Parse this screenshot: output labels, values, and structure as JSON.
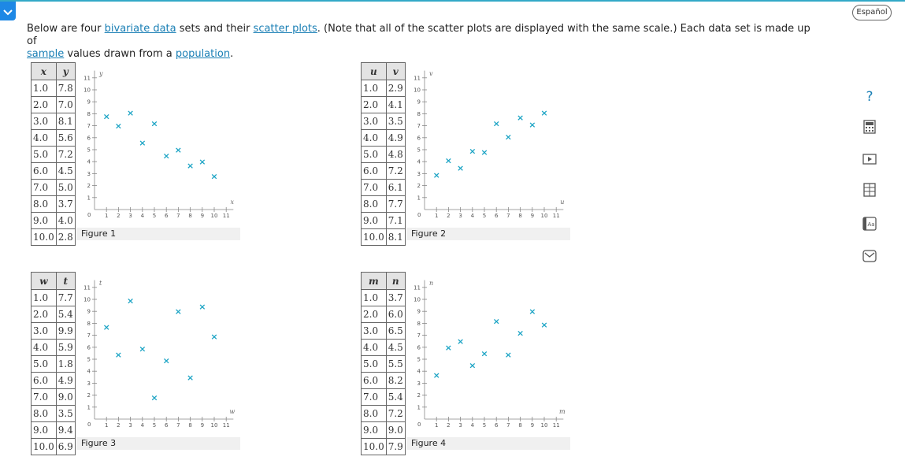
{
  "header": {
    "language_button": "Español"
  },
  "intro": {
    "t1": "Below are four ",
    "link_bivariate": "bivariate data",
    "t2": " sets and their ",
    "link_scatter": "scatter plots",
    "t3": ". (Note that all of the scatter plots are displayed with the same scale.) Each data set is made up of ",
    "link_sample": "sample",
    "t4": " values drawn from a ",
    "link_population": "population",
    "t5": "."
  },
  "axis_ticks": [
    "1",
    "2",
    "3",
    "4",
    "5",
    "6",
    "7",
    "8",
    "9",
    "10",
    "11"
  ],
  "origin_label": "0",
  "colors": {
    "accent": "#1aa3c4",
    "link": "#1a7fb5",
    "header_bg": "#e3e3e3"
  },
  "tools": [
    "help-icon",
    "calculator-icon",
    "video-icon",
    "tables-icon",
    "glossary-icon",
    "email-icon"
  ],
  "help_symbol": "?",
  "datasets": [
    {
      "caption": "Figure 1",
      "xname": "x",
      "yname": "y",
      "x": [
        "1.0",
        "2.0",
        "3.0",
        "4.0",
        "5.0",
        "6.0",
        "7.0",
        "8.0",
        "9.0",
        "10.0"
      ],
      "y": [
        "7.8",
        "7.0",
        "8.1",
        "5.6",
        "7.2",
        "4.5",
        "5.0",
        "3.7",
        "4.0",
        "2.8"
      ]
    },
    {
      "caption": "Figure 2",
      "xname": "u",
      "yname": "v",
      "x": [
        "1.0",
        "2.0",
        "3.0",
        "4.0",
        "5.0",
        "6.0",
        "7.0",
        "8.0",
        "9.0",
        "10.0"
      ],
      "y": [
        "2.9",
        "4.1",
        "3.5",
        "4.9",
        "4.8",
        "7.2",
        "6.1",
        "7.7",
        "7.1",
        "8.1"
      ]
    },
    {
      "caption": "Figure 3",
      "xname": "w",
      "yname": "t",
      "x": [
        "1.0",
        "2.0",
        "3.0",
        "4.0",
        "5.0",
        "6.0",
        "7.0",
        "8.0",
        "9.0",
        "10.0"
      ],
      "y": [
        "7.7",
        "5.4",
        "9.9",
        "5.9",
        "1.8",
        "4.9",
        "9.0",
        "3.5",
        "9.4",
        "6.9"
      ]
    },
    {
      "caption": "Figure 4",
      "xname": "m",
      "yname": "n",
      "x": [
        "1.0",
        "2.0",
        "3.0",
        "4.0",
        "5.0",
        "6.0",
        "7.0",
        "8.0",
        "9.0",
        "10.0"
      ],
      "y": [
        "3.7",
        "6.0",
        "6.5",
        "4.5",
        "5.5",
        "8.2",
        "5.4",
        "7.2",
        "9.0",
        "7.9"
      ]
    }
  ]
}
